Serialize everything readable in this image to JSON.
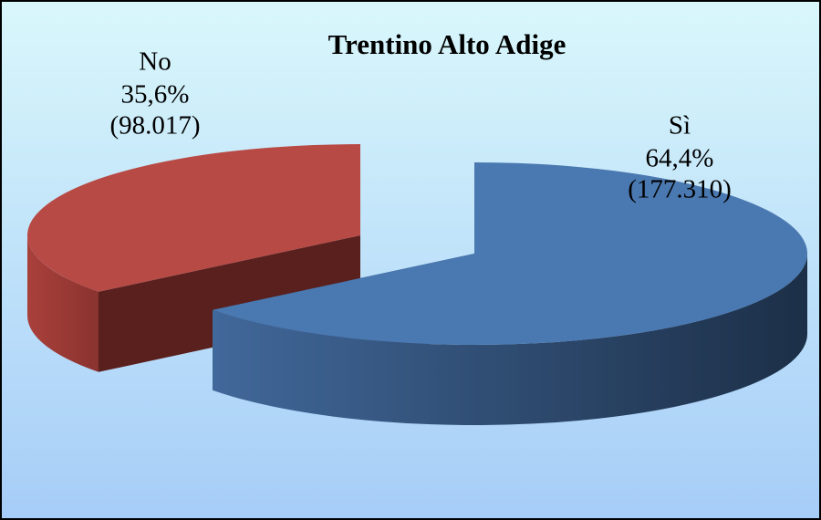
{
  "chart_data": {
    "type": "pie",
    "title": "Trentino Alto Adige",
    "categories": [
      "Sì",
      "No"
    ],
    "values": [
      64.4,
      35.6
    ],
    "value_labels": [
      "64,4%",
      "35,6%"
    ],
    "counts": [
      177310,
      98017
    ],
    "count_labels": [
      "(177.310)",
      "(98.017)"
    ],
    "colors": [
      "#4a78b0",
      "#b84a45"
    ]
  }
}
